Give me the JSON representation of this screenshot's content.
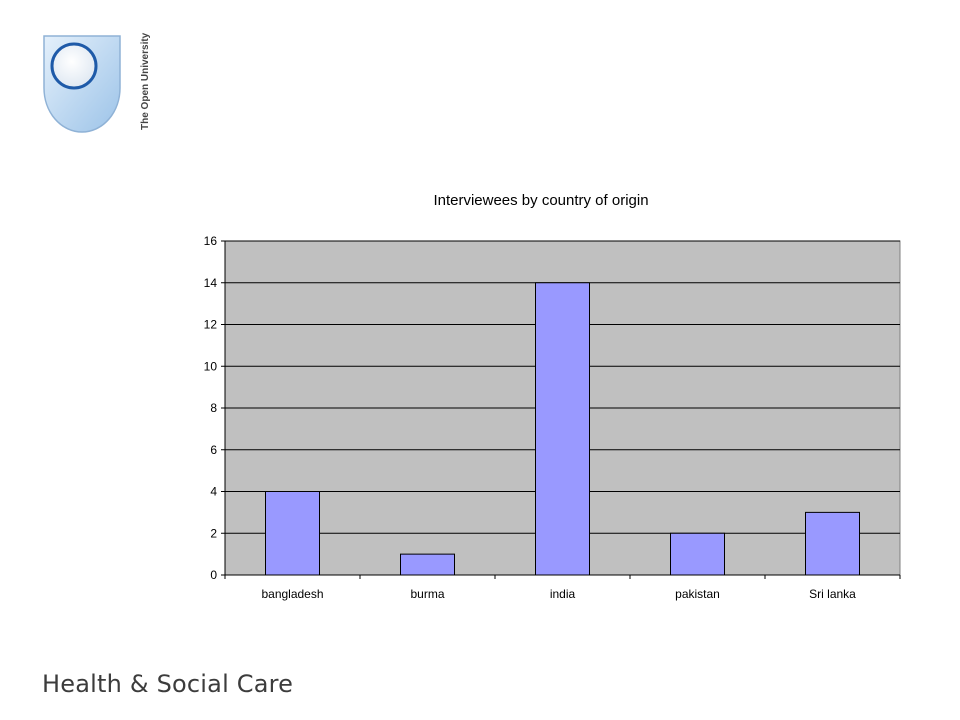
{
  "logo": {
    "text": "The Open University"
  },
  "footer": {
    "text": "Health & Social Care"
  },
  "colors": {
    "plot_bg": "#c0c0c0",
    "bar": "#9999ff",
    "grid": "#000000"
  },
  "chart_data": {
    "type": "bar",
    "title": "Interviewees by country of origin",
    "xlabel": "",
    "ylabel": "",
    "categories": [
      "bangladesh",
      "burma",
      "india",
      "pakistan",
      "Sri lanka"
    ],
    "values": [
      4,
      1,
      14,
      2,
      3
    ],
    "ylim": [
      0,
      16
    ],
    "yticks": [
      0,
      2,
      4,
      6,
      8,
      10,
      12,
      14,
      16
    ],
    "grid": true,
    "legend": "none"
  }
}
